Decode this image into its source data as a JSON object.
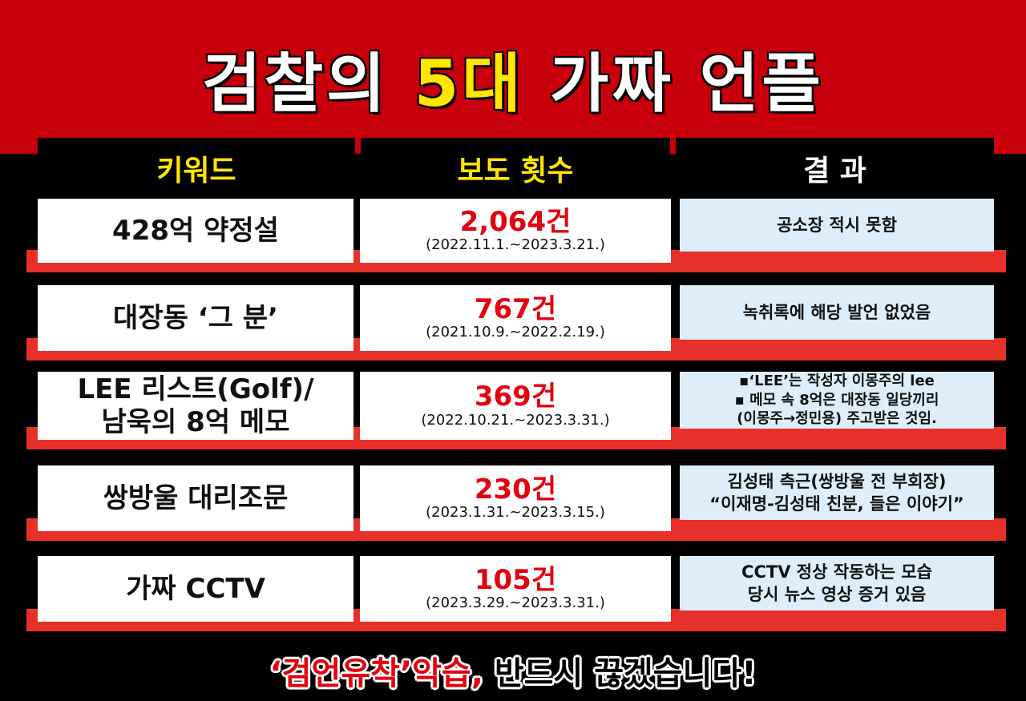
{
  "title": {
    "part1": "검찰의 ",
    "highlight": "5대",
    "part2": " 가짜 언플"
  },
  "headers": [
    {
      "label": "키워드",
      "color": "#ffe600"
    },
    {
      "label": "보도 횟수",
      "color": "#ffe600"
    },
    {
      "label": "결 과",
      "color": "#ffffff"
    }
  ],
  "rows": [
    {
      "keyword": [
        "428억 약정설"
      ],
      "count": "2,064건",
      "period": "(2022.11.1.~2023.3.21.)",
      "result": [
        "공소장 적시 못함"
      ]
    },
    {
      "keyword": [
        "대장동 ‘그 분’"
      ],
      "count": "767건",
      "period": "(2021.10.9.~2022.2.19.)",
      "result": [
        "녹취록에 해당 발언 없었음"
      ]
    },
    {
      "keyword": [
        "LEE 리스트(Golf)/",
        "남욱의 8억 메모"
      ],
      "count": "369건",
      "period": "(2022.10.21.~2023.3.31.)",
      "result": [
        "▪‘LEE’는 작성자 이몽주의 lee",
        "▪ 메모 속 8억은 대장동 일당끼리",
        "(이몽주→정민용) 주고받은 것임."
      ]
    },
    {
      "keyword": [
        "쌍방울 대리조문"
      ],
      "count": "230건",
      "period": "(2023.1.31.~2023.3.15.)",
      "result": [
        "김성태 측근(쌍방울 전 부회장)",
        "“이재명-김성태 친분, 들은 이야기”"
      ]
    },
    {
      "keyword": [
        "가짜 CCTV"
      ],
      "count": "105건",
      "period": "(2023.3.29.~2023.3.31.)",
      "result": [
        "CCTV 정상 작동하는 모습",
        "당시 뉴스 영상 증거 있음"
      ]
    }
  ],
  "footer": {
    "red": "‘검언유착’악습,",
    "rest": " 반드시 끊겠습니다!"
  },
  "colors": {
    "banner": "#c7000b",
    "accent_yellow": "#ffe600",
    "count_red": "#e3000f",
    "bar_red": "#e8302a",
    "result_bg": "#ddeefa"
  }
}
